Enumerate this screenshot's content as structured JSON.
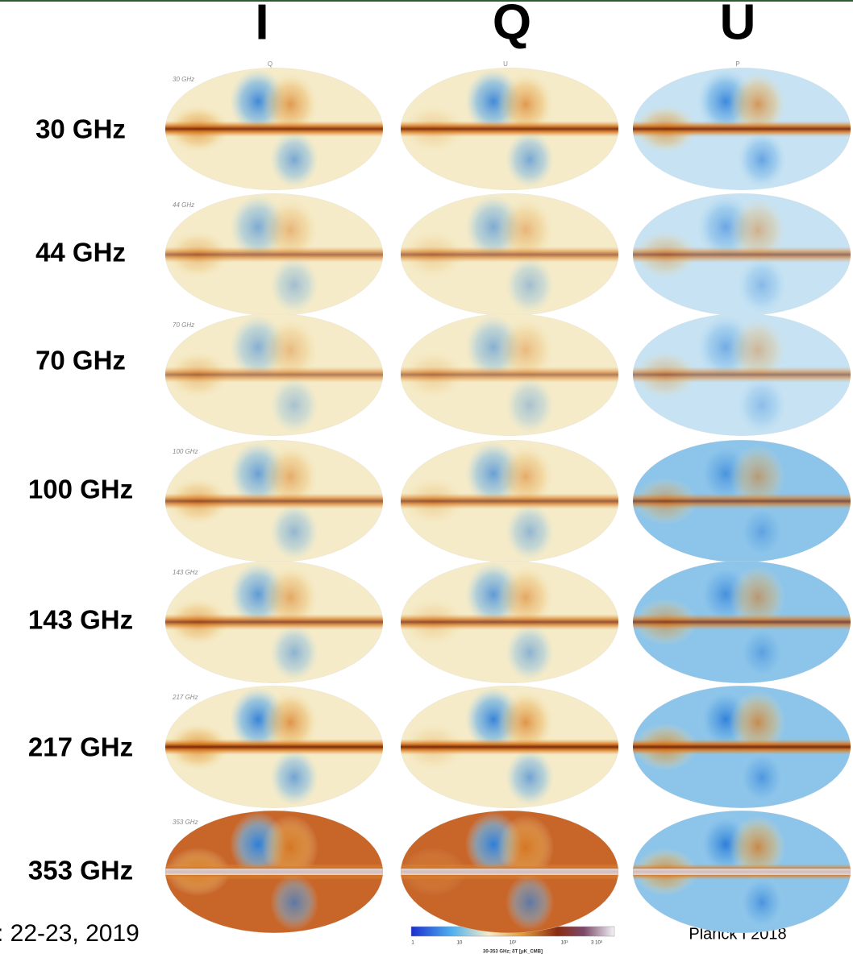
{
  "column_headers": [
    "I",
    "Q",
    "U"
  ],
  "map_column_labels": [
    "Q",
    "U",
    "P"
  ],
  "rows": [
    {
      "label": "30 GHz",
      "map_label": "30 GHz"
    },
    {
      "label": "44 GHz",
      "map_label": "44 GHz"
    },
    {
      "label": "70 GHz",
      "map_label": "70 GHz"
    },
    {
      "label": "100 GHz",
      "map_label": "100 GHz"
    },
    {
      "label": "143 GHz",
      "map_label": "143 GHz"
    },
    {
      "label": "217 GHz",
      "map_label": "217 GHz"
    },
    {
      "label": "353 GHz",
      "map_label": "353 GHz"
    }
  ],
  "footer_left": ": 22-23, 2019",
  "colorbar": {
    "tick_labels": [
      "1",
      "10",
      "10²",
      "10³",
      "3 10³"
    ],
    "caption": "30-353 GHz; δT [μK_CMB]"
  },
  "credit": "Planck I 2018"
}
